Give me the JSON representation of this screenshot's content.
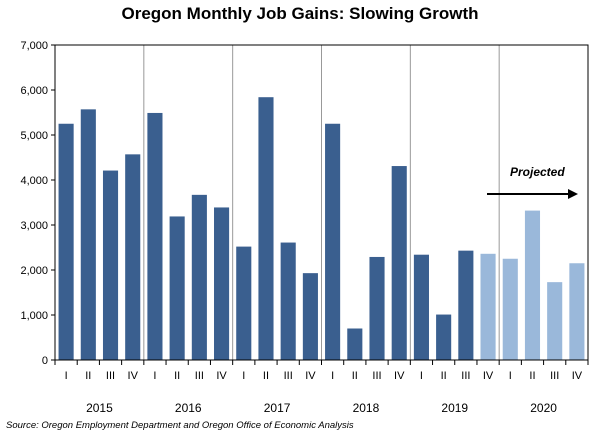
{
  "chart_data": {
    "type": "bar",
    "title": "Oregon Monthly Job Gains: Slowing Growth",
    "ylim": [
      0,
      7000
    ],
    "yticks": [
      0,
      1000,
      2000,
      3000,
      4000,
      5000,
      6000,
      7000
    ],
    "ytick_labels": [
      "0",
      "1,000",
      "2,000",
      "3,000",
      "4,000",
      "5,000",
      "6,000",
      "7,000"
    ],
    "years": [
      "2015",
      "2016",
      "2017",
      "2018",
      "2019",
      "2020"
    ],
    "quarter_labels": [
      "I",
      "II",
      "III",
      "IV"
    ],
    "values": [
      5250,
      5570,
      4210,
      4570,
      5490,
      3190,
      3670,
      3390,
      2520,
      5840,
      2610,
      1930,
      5250,
      700,
      2290,
      4310,
      2340,
      1010,
      2430,
      2360,
      2250,
      3320,
      1730,
      2150
    ],
    "projected_from_index": 19,
    "projected_label": "Projected",
    "colors": {
      "actual": "#3a5f8f",
      "projected": "#9ab8da",
      "gridline": "#999999"
    }
  },
  "source": "Source: Oregon Employment Department and Oregon Office of Economic Analysis"
}
